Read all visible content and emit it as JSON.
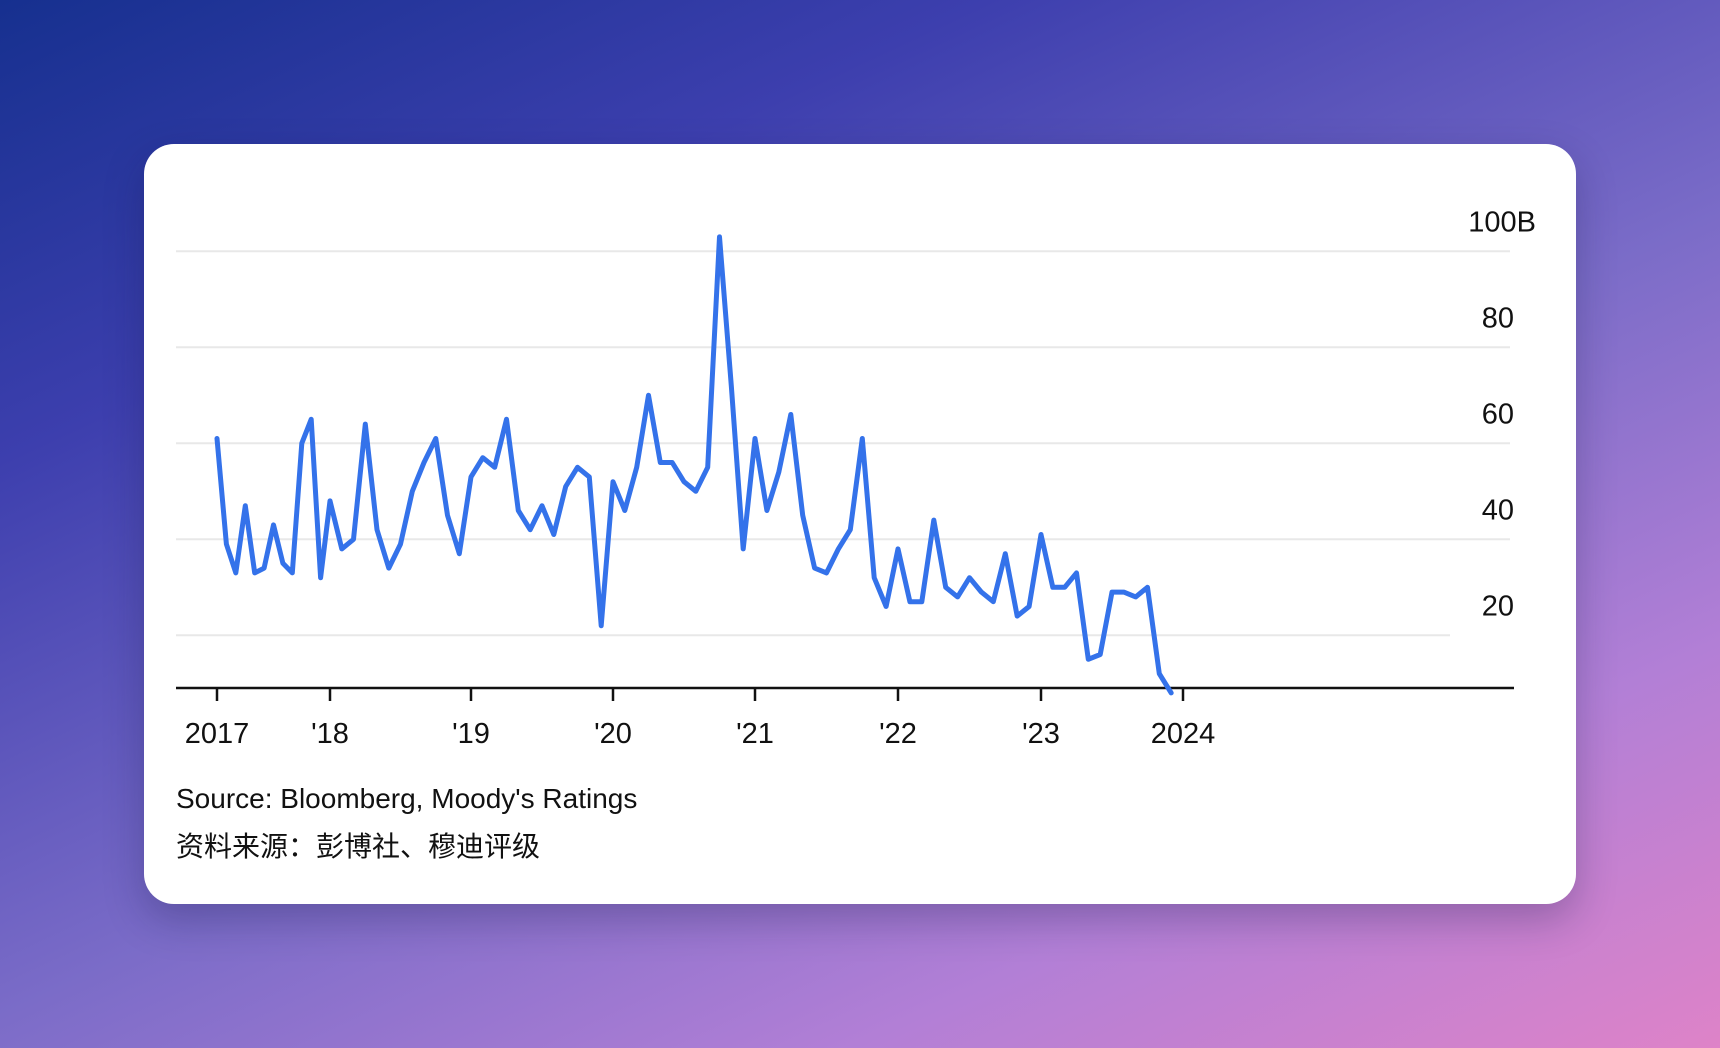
{
  "colors": {
    "line": "#3472ea",
    "grid": "#e8e8e8",
    "axis": "#111111",
    "text": "#111111"
  },
  "chart_data": {
    "type": "line",
    "title": "",
    "xlabel": "",
    "ylabel": "",
    "x_tick_labels": [
      "2017",
      "'18",
      "'19",
      "'20",
      "'21",
      "'22",
      "'23",
      "2024"
    ],
    "x_tick_years": [
      2017,
      2018,
      2019,
      2020,
      2021,
      2022,
      2023,
      2024
    ],
    "y_tick_labels": [
      "100B",
      "80",
      "60",
      "40",
      "20"
    ],
    "y_tick_values": [
      100,
      80,
      60,
      40,
      20
    ],
    "ylim": [
      0,
      100
    ],
    "grid": true,
    "series": [
      {
        "values": [
          [
            "2017-01",
            61
          ],
          [
            "2017-02",
            39
          ],
          [
            "2017-03",
            33
          ],
          [
            "2017-04",
            47
          ],
          [
            "2017-05",
            33
          ],
          [
            "2017-06",
            34
          ],
          [
            "2017-07",
            43
          ],
          [
            "2017-08",
            35
          ],
          [
            "2017-09",
            33
          ],
          [
            "2017-10",
            60
          ],
          [
            "2017-11",
            65
          ],
          [
            "2017-12",
            32
          ],
          [
            "2018-01",
            48
          ],
          [
            "2018-02",
            38
          ],
          [
            "2018-03",
            40
          ],
          [
            "2018-04",
            64
          ],
          [
            "2018-05",
            42
          ],
          [
            "2018-06",
            34
          ],
          [
            "2018-07",
            39
          ],
          [
            "2018-08",
            50
          ],
          [
            "2018-09",
            56
          ],
          [
            "2018-10",
            61
          ],
          [
            "2018-11",
            45
          ],
          [
            "2018-12",
            37
          ],
          [
            "2019-01",
            53
          ],
          [
            "2019-02",
            57
          ],
          [
            "2019-03",
            55
          ],
          [
            "2019-04",
            65
          ],
          [
            "2019-05",
            46
          ],
          [
            "2019-06",
            42
          ],
          [
            "2019-07",
            47
          ],
          [
            "2019-08",
            41
          ],
          [
            "2019-09",
            51
          ],
          [
            "2019-10",
            55
          ],
          [
            "2019-11",
            53
          ],
          [
            "2019-12",
            22
          ],
          [
            "2020-01",
            52
          ],
          [
            "2020-02",
            46
          ],
          [
            "2020-03",
            55
          ],
          [
            "2020-04",
            70
          ],
          [
            "2020-05",
            56
          ],
          [
            "2020-06",
            56
          ],
          [
            "2020-07",
            52
          ],
          [
            "2020-08",
            50
          ],
          [
            "2020-09",
            55
          ],
          [
            "2020-10",
            103
          ],
          [
            "2020-11",
            72
          ],
          [
            "2020-12",
            38
          ],
          [
            "2021-01",
            61
          ],
          [
            "2021-02",
            46
          ],
          [
            "2021-03",
            54
          ],
          [
            "2021-04",
            66
          ],
          [
            "2021-05",
            45
          ],
          [
            "2021-06",
            34
          ],
          [
            "2021-07",
            33
          ],
          [
            "2021-08",
            38
          ],
          [
            "2021-09",
            42
          ],
          [
            "2021-10",
            61
          ],
          [
            "2021-11",
            32
          ],
          [
            "2021-12",
            26
          ],
          [
            "2022-01",
            38
          ],
          [
            "2022-02",
            27
          ],
          [
            "2022-03",
            27
          ],
          [
            "2022-04",
            44
          ],
          [
            "2022-05",
            30
          ],
          [
            "2022-06",
            28
          ],
          [
            "2022-07",
            32
          ],
          [
            "2022-08",
            29
          ],
          [
            "2022-09",
            27
          ],
          [
            "2022-10",
            37
          ],
          [
            "2022-11",
            24
          ],
          [
            "2022-12",
            26
          ],
          [
            "2023-01",
            41
          ],
          [
            "2023-02",
            30
          ],
          [
            "2023-03",
            30
          ],
          [
            "2023-04",
            33
          ],
          [
            "2023-05",
            15
          ],
          [
            "2023-06",
            16
          ],
          [
            "2023-07",
            29
          ],
          [
            "2023-08",
            29
          ],
          [
            "2023-09",
            28
          ],
          [
            "2023-10",
            30
          ],
          [
            "2023-11",
            12
          ],
          [
            "2023-12",
            8
          ]
        ]
      }
    ]
  },
  "footer": {
    "source": "Source: Bloomberg, Moody's Ratings",
    "source_cn": "资料来源：彭博社、穆迪评级"
  }
}
